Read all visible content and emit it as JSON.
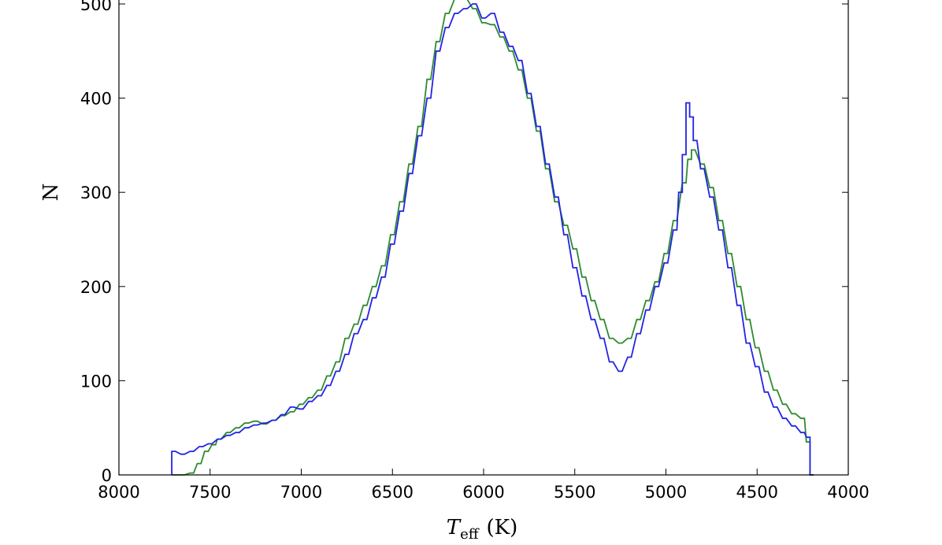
{
  "chart_data": {
    "type": "histogram",
    "xlabel": "T_eff (K)",
    "xlabel_main": "T",
    "xlabel_sub": "eff",
    "xlabel_unit": "(K)",
    "ylabel": "N",
    "xlim": [
      8000,
      4000
    ],
    "ylim": [
      0,
      500
    ],
    "x_reversed": true,
    "grid": false,
    "x_ticks": [
      8000,
      7500,
      7000,
      6500,
      6000,
      5500,
      5000,
      4500,
      4000
    ],
    "x_tick_labels": [
      "8000",
      "7500",
      "7000",
      "6500",
      "6000",
      "5500",
      "5000",
      "4500",
      "4000"
    ],
    "y_ticks": [
      0,
      100,
      200,
      300,
      400,
      500
    ],
    "y_tick_labels": [
      "0",
      "100",
      "200",
      "300",
      "400",
      "500"
    ],
    "bin_width": 20,
    "series": [
      {
        "color": "#2e8b2e",
        "points": [
          [
            7700,
            0
          ],
          [
            7650,
            0
          ],
          [
            7600,
            2
          ],
          [
            7560,
            12
          ],
          [
            7520,
            25
          ],
          [
            7480,
            32
          ],
          [
            7450,
            38
          ],
          [
            7400,
            45
          ],
          [
            7350,
            50
          ],
          [
            7300,
            55
          ],
          [
            7250,
            57
          ],
          [
            7200,
            54
          ],
          [
            7150,
            58
          ],
          [
            7100,
            63
          ],
          [
            7050,
            67
          ],
          [
            7000,
            75
          ],
          [
            6950,
            82
          ],
          [
            6900,
            90
          ],
          [
            6850,
            105
          ],
          [
            6800,
            120
          ],
          [
            6750,
            145
          ],
          [
            6700,
            160
          ],
          [
            6650,
            180
          ],
          [
            6600,
            200
          ],
          [
            6550,
            222
          ],
          [
            6500,
            255
          ],
          [
            6450,
            290
          ],
          [
            6400,
            330
          ],
          [
            6350,
            370
          ],
          [
            6300,
            420
          ],
          [
            6250,
            460
          ],
          [
            6200,
            490
          ],
          [
            6150,
            505
          ],
          [
            6100,
            505
          ],
          [
            6050,
            495
          ],
          [
            6000,
            480
          ],
          [
            5950,
            478
          ],
          [
            5900,
            465
          ],
          [
            5850,
            450
          ],
          [
            5800,
            430
          ],
          [
            5750,
            400
          ],
          [
            5700,
            365
          ],
          [
            5650,
            325
          ],
          [
            5600,
            290
          ],
          [
            5550,
            265
          ],
          [
            5500,
            240
          ],
          [
            5450,
            210
          ],
          [
            5400,
            185
          ],
          [
            5350,
            165
          ],
          [
            5300,
            145
          ],
          [
            5250,
            140
          ],
          [
            5200,
            145
          ],
          [
            5150,
            165
          ],
          [
            5100,
            185
          ],
          [
            5050,
            205
          ],
          [
            5000,
            235
          ],
          [
            4950,
            270
          ],
          [
            4900,
            310
          ],
          [
            4870,
            335
          ],
          [
            4850,
            345
          ],
          [
            4800,
            330
          ],
          [
            4750,
            305
          ],
          [
            4700,
            270
          ],
          [
            4650,
            235
          ],
          [
            4600,
            200
          ],
          [
            4550,
            165
          ],
          [
            4500,
            135
          ],
          [
            4450,
            110
          ],
          [
            4400,
            90
          ],
          [
            4350,
            75
          ],
          [
            4300,
            65
          ],
          [
            4250,
            60
          ],
          [
            4220,
            35
          ],
          [
            4200,
            0
          ]
        ]
      },
      {
        "color": "#2323e6",
        "points": [
          [
            7700,
            25
          ],
          [
            7650,
            22
          ],
          [
            7600,
            25
          ],
          [
            7550,
            30
          ],
          [
            7500,
            33
          ],
          [
            7450,
            38
          ],
          [
            7400,
            42
          ],
          [
            7350,
            45
          ],
          [
            7300,
            50
          ],
          [
            7250,
            53
          ],
          [
            7200,
            55
          ],
          [
            7150,
            58
          ],
          [
            7100,
            64
          ],
          [
            7050,
            72
          ],
          [
            7000,
            70
          ],
          [
            6950,
            78
          ],
          [
            6900,
            84
          ],
          [
            6850,
            95
          ],
          [
            6800,
            110
          ],
          [
            6750,
            128
          ],
          [
            6700,
            150
          ],
          [
            6650,
            165
          ],
          [
            6600,
            188
          ],
          [
            6550,
            210
          ],
          [
            6500,
            245
          ],
          [
            6450,
            280
          ],
          [
            6400,
            320
          ],
          [
            6350,
            360
          ],
          [
            6300,
            400
          ],
          [
            6250,
            450
          ],
          [
            6200,
            475
          ],
          [
            6150,
            490
          ],
          [
            6100,
            495
          ],
          [
            6050,
            500
          ],
          [
            6000,
            485
          ],
          [
            5950,
            490
          ],
          [
            5900,
            470
          ],
          [
            5850,
            455
          ],
          [
            5800,
            440
          ],
          [
            5750,
            405
          ],
          [
            5700,
            370
          ],
          [
            5650,
            330
          ],
          [
            5600,
            295
          ],
          [
            5550,
            255
          ],
          [
            5500,
            220
          ],
          [
            5450,
            190
          ],
          [
            5400,
            165
          ],
          [
            5350,
            145
          ],
          [
            5300,
            120
          ],
          [
            5250,
            110
          ],
          [
            5200,
            125
          ],
          [
            5150,
            150
          ],
          [
            5100,
            175
          ],
          [
            5050,
            200
          ],
          [
            5000,
            225
          ],
          [
            4950,
            260
          ],
          [
            4920,
            300
          ],
          [
            4900,
            340
          ],
          [
            4880,
            395
          ],
          [
            4860,
            380
          ],
          [
            4840,
            355
          ],
          [
            4800,
            325
          ],
          [
            4750,
            295
          ],
          [
            4700,
            260
          ],
          [
            4650,
            220
          ],
          [
            4600,
            180
          ],
          [
            4550,
            140
          ],
          [
            4500,
            115
          ],
          [
            4450,
            88
          ],
          [
            4400,
            72
          ],
          [
            4350,
            60
          ],
          [
            4300,
            52
          ],
          [
            4250,
            45
          ],
          [
            4220,
            40
          ],
          [
            4200,
            0
          ]
        ]
      }
    ]
  }
}
